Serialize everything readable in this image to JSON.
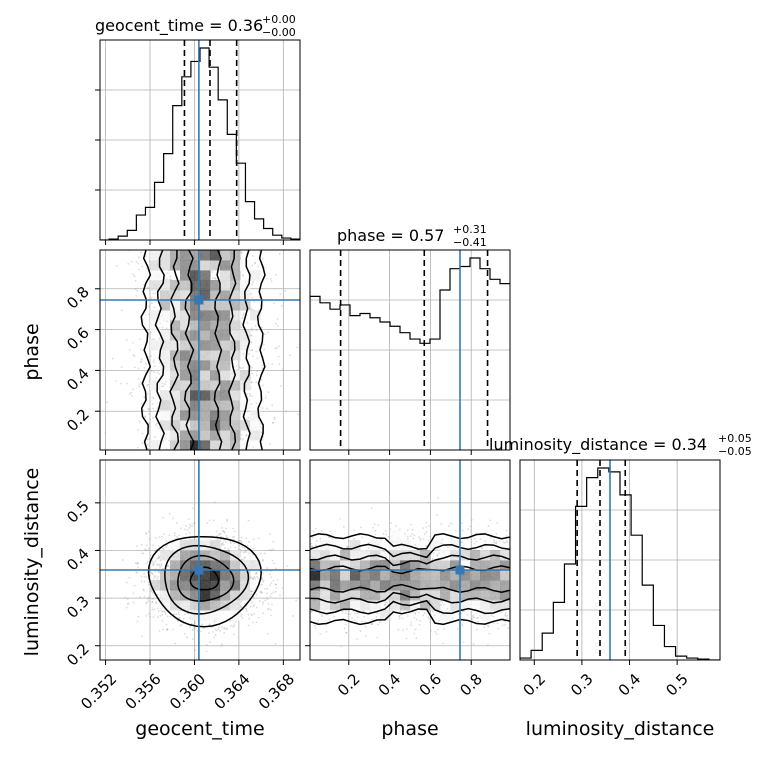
{
  "chart_data": {
    "type": "corner",
    "truth": {
      "geocent_time": 0.3604,
      "phase": 0.745,
      "luminosity_distance": 0.359
    },
    "truth_color": "#3778b4",
    "params": [
      {
        "key": "geocent_time",
        "label": "geocent_time",
        "title": "geocent_time = 0.36",
        "err_plus": "+0.00",
        "err_minus": "−0.00",
        "range": [
          0.3515,
          0.3695
        ],
        "ticks": [
          0.352,
          0.356,
          0.36,
          0.364,
          0.368
        ],
        "tick_labels": [
          "0.352",
          "0.356",
          "0.360",
          "0.364",
          "0.368"
        ],
        "quantiles": [
          0.3591,
          0.3614,
          0.3638
        ],
        "hist": [
          0,
          0.005,
          0.02,
          0.05,
          0.13,
          0.17,
          0.3,
          0.45,
          0.7,
          0.85,
          0.93,
          1.0,
          0.9,
          0.73,
          0.55,
          0.4,
          0.2,
          0.11,
          0.06,
          0.025,
          0.01,
          0.005
        ]
      },
      {
        "key": "phase",
        "label": "phase",
        "title": "phase = 0.57",
        "err_plus": "+0.31",
        "err_minus": "−0.41",
        "range": [
          0.01,
          0.99
        ],
        "ticks": [
          0.2,
          0.4,
          0.6,
          0.8
        ],
        "tick_labels": [
          "0.2",
          "0.4",
          "0.6",
          "0.8"
        ],
        "quantiles": [
          0.16,
          0.57,
          0.88
        ],
        "hist": [
          0.72,
          0.69,
          0.66,
          0.68,
          0.63,
          0.64,
          0.62,
          0.6,
          0.58,
          0.55,
          0.52,
          0.5,
          0.52,
          0.75,
          0.85,
          0.86,
          0.9,
          0.85,
          0.8,
          0.78
        ]
      },
      {
        "key": "luminosity_distance",
        "label": "luminosity_distance",
        "title": "luminosity_distance = 0.34",
        "err_plus": "+0.05",
        "err_minus": "−0.05",
        "range": [
          0.17,
          0.59
        ],
        "ticks": [
          0.2,
          0.3,
          0.4,
          0.5
        ],
        "tick_labels": [
          "0.2",
          "0.3",
          "0.4",
          "0.5"
        ],
        "quantiles": [
          0.29,
          0.338,
          0.391
        ],
        "hist": [
          0.01,
          0.05,
          0.14,
          0.3,
          0.5,
          0.8,
          0.95,
          1.0,
          0.98,
          0.86,
          0.65,
          0.39,
          0.18,
          0.07,
          0.02,
          0.01,
          0.005,
          0.0
        ]
      }
    ],
    "panels": [
      {
        "row": 1,
        "col": 0,
        "x": "geocent_time",
        "y": "phase",
        "center": [
          0.3608,
          0.5
        ],
        "spread": [
          0.0026,
          0.5
        ],
        "clustering": "stripe"
      },
      {
        "row": 2,
        "col": 0,
        "x": "geocent_time",
        "y": "luminosity_distance",
        "center": [
          0.3609,
          0.34
        ],
        "spread": [
          0.0025,
          0.045
        ],
        "clustering": "blob"
      },
      {
        "row": 2,
        "col": 1,
        "x": "phase",
        "y": "luminosity_distance",
        "center": [
          0.5,
          0.34
        ],
        "spread": [
          0.5,
          0.045
        ],
        "clustering": "band"
      }
    ]
  }
}
